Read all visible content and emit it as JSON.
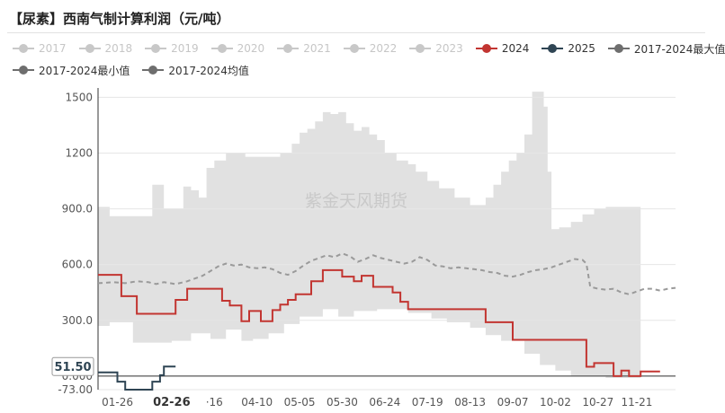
{
  "title": "【尿素】西南气制计算利润（元/吨）",
  "watermark": "紫金天风期货",
  "legend_rows": [
    [
      {
        "name": "2017",
        "color": "#c8c8c8",
        "dim": true
      },
      {
        "name": "2018",
        "color": "#c8c8c8",
        "dim": true
      },
      {
        "name": "2019",
        "color": "#c8c8c8",
        "dim": true
      },
      {
        "name": "2020",
        "color": "#c8c8c8",
        "dim": true
      },
      {
        "name": "2021",
        "color": "#c8c8c8",
        "dim": true
      },
      {
        "name": "2022",
        "color": "#c8c8c8",
        "dim": true
      },
      {
        "name": "2023",
        "color": "#c8c8c8",
        "dim": true
      },
      {
        "name": "2024",
        "color": "#c23531",
        "dim": false
      },
      {
        "name": "2025",
        "color": "#2f4554",
        "dim": false
      },
      {
        "name": "2017-2024最大值",
        "color": "#6e6e6e",
        "dim": false
      }
    ],
    [
      {
        "name": "2017-2024最小值",
        "color": "#6e6e6e",
        "dim": false
      },
      {
        "name": "2017-2024均值",
        "color": "#6e6e6e",
        "dim": false
      }
    ]
  ],
  "chart_data": {
    "type": "area",
    "xlabel": "",
    "ylabel": "",
    "ylim": [
      -73,
      1550
    ],
    "y_ticks": [
      "1500",
      "1200",
      "900.0",
      "600.0",
      "300.0",
      "0.000",
      "-73.00"
    ],
    "x_tick_labels": [
      "01-26",
      "02-26",
      "·16",
      "04-10",
      "05-05",
      "05-30",
      "06-24",
      "07-19",
      "08-13",
      "09-07",
      "10-02",
      "10-27",
      "11-21"
    ],
    "highlight_x_label": "02-26",
    "tooltip_value": "51.50",
    "grid": true,
    "legend": "top",
    "colors": {
      "range_fill": "#e1e1e1",
      "mean": "#9a9a9a",
      "y2024": "#c23531",
      "y2025": "#2f4554"
    },
    "series": [
      {
        "name": "2017-2024最大值",
        "points": [
          [
            0,
            910
          ],
          [
            3,
            910
          ],
          [
            3,
            860
          ],
          [
            14,
            860
          ],
          [
            14,
            1030
          ],
          [
            17,
            1030
          ],
          [
            17,
            900
          ],
          [
            22,
            900
          ],
          [
            22,
            1020
          ],
          [
            24,
            1020
          ],
          [
            24,
            1000
          ],
          [
            26,
            1000
          ],
          [
            26,
            960
          ],
          [
            28,
            960
          ],
          [
            28,
            1120
          ],
          [
            30,
            1120
          ],
          [
            30,
            1160
          ],
          [
            33,
            1160
          ],
          [
            33,
            1200
          ],
          [
            38,
            1200
          ],
          [
            38,
            1180
          ],
          [
            47,
            1180
          ],
          [
            47,
            1200
          ],
          [
            50,
            1200
          ],
          [
            50,
            1250
          ],
          [
            52,
            1250
          ],
          [
            52,
            1310
          ],
          [
            54,
            1310
          ],
          [
            54,
            1330
          ],
          [
            56,
            1330
          ],
          [
            56,
            1370
          ],
          [
            58,
            1370
          ],
          [
            58,
            1420
          ],
          [
            60,
            1420
          ],
          [
            60,
            1410
          ],
          [
            62,
            1410
          ],
          [
            62,
            1420
          ],
          [
            64,
            1420
          ],
          [
            64,
            1360
          ],
          [
            66,
            1360
          ],
          [
            66,
            1320
          ],
          [
            68,
            1320
          ],
          [
            68,
            1340
          ],
          [
            70,
            1340
          ],
          [
            70,
            1300
          ],
          [
            72,
            1300
          ],
          [
            72,
            1270
          ],
          [
            74,
            1270
          ],
          [
            74,
            1200
          ],
          [
            77,
            1200
          ],
          [
            77,
            1160
          ],
          [
            80,
            1160
          ],
          [
            80,
            1140
          ],
          [
            82,
            1140
          ],
          [
            82,
            1100
          ],
          [
            85,
            1100
          ],
          [
            85,
            1050
          ],
          [
            88,
            1050
          ],
          [
            88,
            1010
          ],
          [
            92,
            1010
          ],
          [
            92,
            960
          ],
          [
            96,
            960
          ],
          [
            96,
            920
          ],
          [
            100,
            920
          ],
          [
            100,
            960
          ],
          [
            102,
            960
          ],
          [
            102,
            1030
          ],
          [
            104,
            1030
          ],
          [
            104,
            1100
          ],
          [
            106,
            1100
          ],
          [
            106,
            1160
          ],
          [
            108,
            1160
          ],
          [
            108,
            1200
          ],
          [
            110,
            1200
          ],
          [
            110,
            1300
          ],
          [
            112,
            1300
          ],
          [
            112,
            1530
          ],
          [
            115,
            1530
          ],
          [
            115,
            1450
          ],
          [
            116,
            1450
          ],
          [
            116,
            1100
          ],
          [
            117,
            1100
          ],
          [
            117,
            790
          ],
          [
            119,
            790
          ],
          [
            119,
            800
          ],
          [
            122,
            800
          ],
          [
            122,
            830
          ],
          [
            125,
            830
          ],
          [
            125,
            870
          ],
          [
            128,
            870
          ],
          [
            128,
            900
          ],
          [
            131,
            900
          ],
          [
            131,
            910
          ],
          [
            140,
            910
          ]
        ]
      },
      {
        "name": "2017-2024最小值",
        "points": [
          [
            0,
            270
          ],
          [
            3,
            270
          ],
          [
            3,
            290
          ],
          [
            9,
            290
          ],
          [
            9,
            180
          ],
          [
            19,
            180
          ],
          [
            19,
            190
          ],
          [
            24,
            190
          ],
          [
            24,
            230
          ],
          [
            29,
            230
          ],
          [
            29,
            200
          ],
          [
            33,
            200
          ],
          [
            33,
            250
          ],
          [
            37,
            250
          ],
          [
            37,
            190
          ],
          [
            40,
            190
          ],
          [
            40,
            200
          ],
          [
            44,
            200
          ],
          [
            44,
            230
          ],
          [
            48,
            230
          ],
          [
            48,
            280
          ],
          [
            52,
            280
          ],
          [
            52,
            320
          ],
          [
            58,
            320
          ],
          [
            58,
            360
          ],
          [
            62,
            360
          ],
          [
            62,
            320
          ],
          [
            66,
            320
          ],
          [
            66,
            350
          ],
          [
            72,
            350
          ],
          [
            72,
            360
          ],
          [
            80,
            360
          ],
          [
            80,
            340
          ],
          [
            86,
            340
          ],
          [
            86,
            310
          ],
          [
            90,
            310
          ],
          [
            90,
            290
          ],
          [
            96,
            290
          ],
          [
            96,
            260
          ],
          [
            100,
            260
          ],
          [
            100,
            220
          ],
          [
            104,
            220
          ],
          [
            104,
            190
          ],
          [
            110,
            190
          ],
          [
            110,
            120
          ],
          [
            114,
            120
          ],
          [
            114,
            60
          ],
          [
            118,
            60
          ],
          [
            118,
            30
          ],
          [
            122,
            30
          ],
          [
            122,
            0
          ],
          [
            131,
            0
          ],
          [
            131,
            -10
          ],
          [
            140,
            -10
          ]
        ]
      },
      {
        "name": "2017-2024均值",
        "points": [
          [
            0,
            500
          ],
          [
            4,
            505
          ],
          [
            7,
            500
          ],
          [
            10,
            510
          ],
          [
            13,
            505
          ],
          [
            15,
            495
          ],
          [
            17,
            505
          ],
          [
            20,
            495
          ],
          [
            23,
            510
          ],
          [
            25,
            525
          ],
          [
            27,
            540
          ],
          [
            29,
            565
          ],
          [
            31,
            590
          ],
          [
            33,
            605
          ],
          [
            35,
            595
          ],
          [
            37,
            600
          ],
          [
            39,
            585
          ],
          [
            41,
            580
          ],
          [
            43,
            585
          ],
          [
            45,
            575
          ],
          [
            47,
            555
          ],
          [
            49,
            545
          ],
          [
            51,
            565
          ],
          [
            53,
            595
          ],
          [
            55,
            620
          ],
          [
            57,
            635
          ],
          [
            59,
            650
          ],
          [
            61,
            640
          ],
          [
            63,
            660
          ],
          [
            65,
            645
          ],
          [
            67,
            615
          ],
          [
            69,
            630
          ],
          [
            71,
            650
          ],
          [
            73,
            635
          ],
          [
            75,
            625
          ],
          [
            77,
            615
          ],
          [
            79,
            605
          ],
          [
            81,
            615
          ],
          [
            83,
            640
          ],
          [
            85,
            625
          ],
          [
            87,
            595
          ],
          [
            89,
            590
          ],
          [
            91,
            580
          ],
          [
            93,
            585
          ],
          [
            95,
            580
          ],
          [
            97,
            575
          ],
          [
            99,
            570
          ],
          [
            101,
            560
          ],
          [
            103,
            555
          ],
          [
            105,
            540
          ],
          [
            107,
            535
          ],
          [
            109,
            545
          ],
          [
            111,
            560
          ],
          [
            113,
            570
          ],
          [
            115,
            575
          ],
          [
            117,
            585
          ],
          [
            119,
            600
          ],
          [
            121,
            615
          ],
          [
            123,
            630
          ],
          [
            125,
            625
          ],
          [
            126,
            605
          ],
          [
            127,
            480
          ],
          [
            129,
            470
          ],
          [
            131,
            465
          ],
          [
            133,
            470
          ],
          [
            135,
            450
          ],
          [
            137,
            440
          ],
          [
            139,
            455
          ],
          [
            141,
            470
          ],
          [
            143,
            470
          ],
          [
            145,
            460
          ],
          [
            147,
            470
          ],
          [
            149,
            475
          ]
        ]
      },
      {
        "name": "2024",
        "points": [
          [
            0,
            545
          ],
          [
            6,
            545
          ],
          [
            6,
            430
          ],
          [
            10,
            430
          ],
          [
            10,
            335
          ],
          [
            20,
            335
          ],
          [
            20,
            410
          ],
          [
            23,
            410
          ],
          [
            23,
            470
          ],
          [
            32,
            470
          ],
          [
            32,
            405
          ],
          [
            34,
            405
          ],
          [
            34,
            380
          ],
          [
            37,
            380
          ],
          [
            37,
            295
          ],
          [
            39,
            295
          ],
          [
            39,
            350
          ],
          [
            42,
            350
          ],
          [
            42,
            295
          ],
          [
            45,
            295
          ],
          [
            45,
            355
          ],
          [
            47,
            355
          ],
          [
            47,
            385
          ],
          [
            49,
            385
          ],
          [
            49,
            410
          ],
          [
            51,
            410
          ],
          [
            51,
            440
          ],
          [
            55,
            440
          ],
          [
            55,
            510
          ],
          [
            58,
            510
          ],
          [
            58,
            570
          ],
          [
            63,
            570
          ],
          [
            63,
            535
          ],
          [
            66,
            535
          ],
          [
            66,
            510
          ],
          [
            68,
            510
          ],
          [
            68,
            540
          ],
          [
            71,
            540
          ],
          [
            71,
            480
          ],
          [
            76,
            480
          ],
          [
            76,
            450
          ],
          [
            78,
            450
          ],
          [
            78,
            400
          ],
          [
            80,
            400
          ],
          [
            80,
            360
          ],
          [
            100,
            360
          ],
          [
            100,
            290
          ],
          [
            107,
            290
          ],
          [
            107,
            195
          ],
          [
            126,
            195
          ],
          [
            126,
            50
          ],
          [
            128,
            50
          ],
          [
            128,
            70
          ],
          [
            133,
            70
          ],
          [
            133,
            0
          ],
          [
            135,
            0
          ],
          [
            135,
            30
          ],
          [
            137,
            30
          ],
          [
            137,
            0
          ],
          [
            140,
            0
          ],
          [
            140,
            25
          ],
          [
            145,
            25
          ]
        ]
      },
      {
        "name": "2025",
        "points": [
          [
            0,
            20
          ],
          [
            5,
            20
          ],
          [
            5,
            -30
          ],
          [
            7,
            -30
          ],
          [
            7,
            -73
          ],
          [
            14,
            -73
          ],
          [
            14,
            -30
          ],
          [
            16,
            -30
          ],
          [
            16,
            5
          ],
          [
            17,
            5
          ],
          [
            17,
            51.5
          ],
          [
            20,
            51.5
          ]
        ]
      }
    ]
  }
}
